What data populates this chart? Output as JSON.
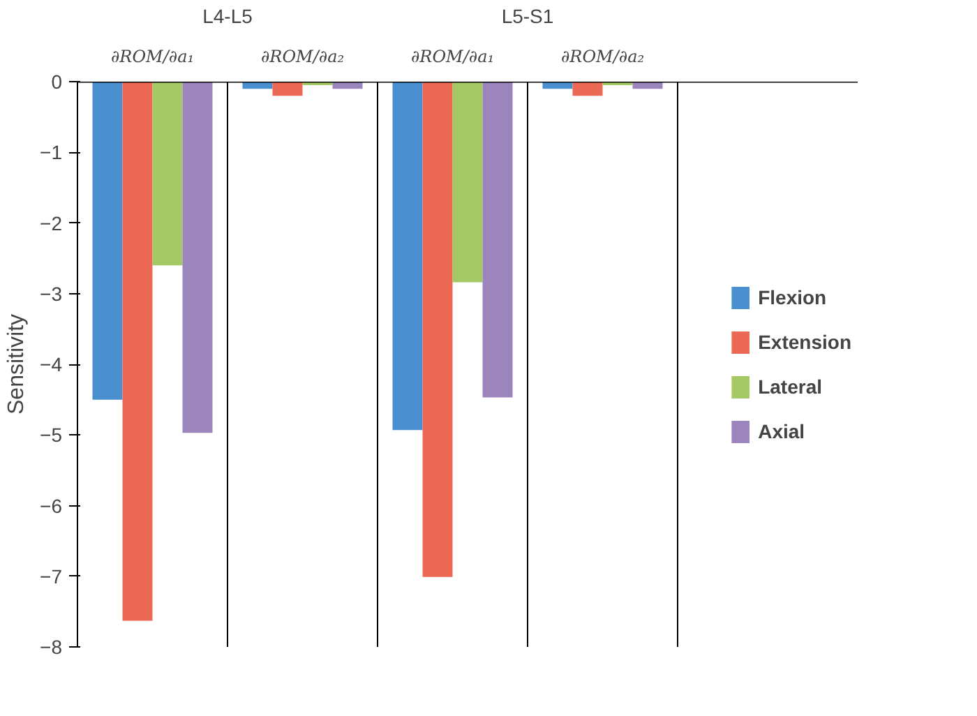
{
  "chart_data": {
    "type": "bar",
    "ylabel": "Sensitivity",
    "categories": [
      "∂ROM/∂a₁",
      "∂ROM/∂a₂",
      "∂ROM/∂a₁",
      "∂ROM/∂a₂"
    ],
    "annotations": [
      "L4-L5",
      "L5-S1"
    ],
    "series": [
      {
        "name": "Flexion",
        "color": "#4a8fd0",
        "values": [
          -4.5,
          -0.1,
          -4.93,
          -0.1
        ]
      },
      {
        "name": "Extension",
        "color": "#ec6a55",
        "values": [
          -7.63,
          -0.2,
          -7.01,
          -0.2
        ]
      },
      {
        "name": "Lateral",
        "color": "#a4c964",
        "values": [
          -2.6,
          -0.05,
          -2.84,
          -0.05
        ]
      },
      {
        "name": "Axial",
        "color": "#9c85bd",
        "values": [
          -4.97,
          -0.1,
          -4.47,
          -0.1
        ]
      }
    ],
    "ylim": [
      -8,
      0
    ],
    "yticks": [
      -8,
      -7,
      -6,
      -5,
      -4,
      -3,
      -2,
      -1,
      0
    ],
    "grid": false,
    "legend": "right"
  }
}
